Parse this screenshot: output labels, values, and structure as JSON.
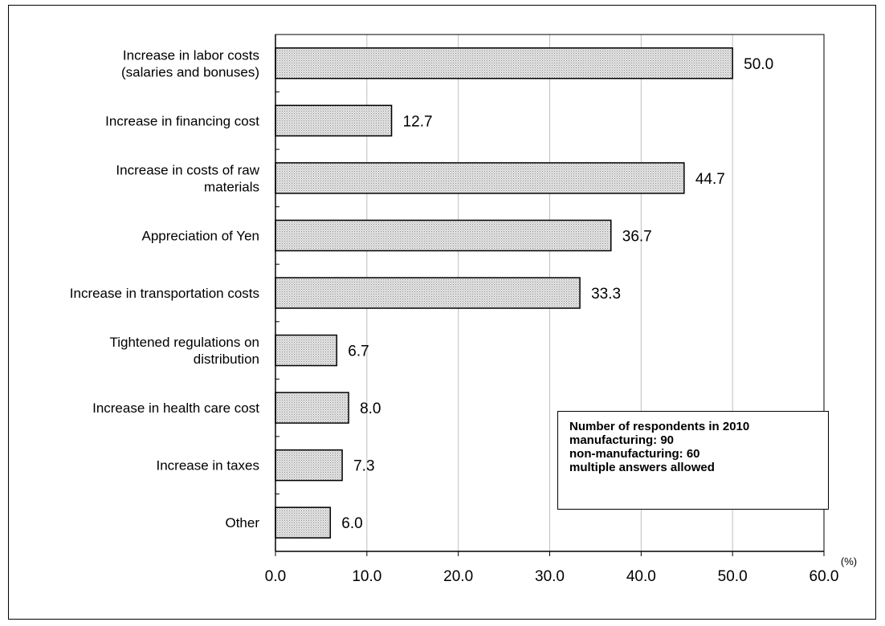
{
  "chart_data": {
    "type": "bar",
    "orientation": "horizontal",
    "categories": [
      [
        "Increase in labor costs",
        "(salaries and bonuses)"
      ],
      [
        "Increase in financing cost"
      ],
      [
        "Increase in costs of raw",
        "materials"
      ],
      [
        "Appreciation of Yen"
      ],
      [
        "Increase in transportation costs"
      ],
      [
        "Tightened regulations on",
        "distribution"
      ],
      [
        "Increase in health care cost"
      ],
      [
        "Increase in taxes"
      ],
      [
        "Other"
      ]
    ],
    "values": [
      50.0,
      12.7,
      44.7,
      36.7,
      33.3,
      6.7,
      8.0,
      7.3,
      6.0
    ],
    "value_labels": [
      "50.0",
      "12.7",
      "44.7",
      "36.7",
      "33.3",
      "6.7",
      "8.0",
      "7.3",
      "6.0"
    ],
    "xlim": [
      0,
      60
    ],
    "xticks": [
      0,
      10,
      20,
      30,
      40,
      50,
      60
    ],
    "xtick_labels": [
      "0.0",
      "10.0",
      "20.0",
      "30.0",
      "40.0",
      "50.0",
      "60.0"
    ],
    "unit": "(%)",
    "grid": "vertical",
    "bar_fill": "#d9d9d9",
    "grid_color": "#bfbfbf"
  },
  "note": {
    "lines": [
      "Number of respondents in 2010",
      "manufacturing: 90",
      "non-manufacturing: 60",
      "multiple answers allowed"
    ]
  }
}
